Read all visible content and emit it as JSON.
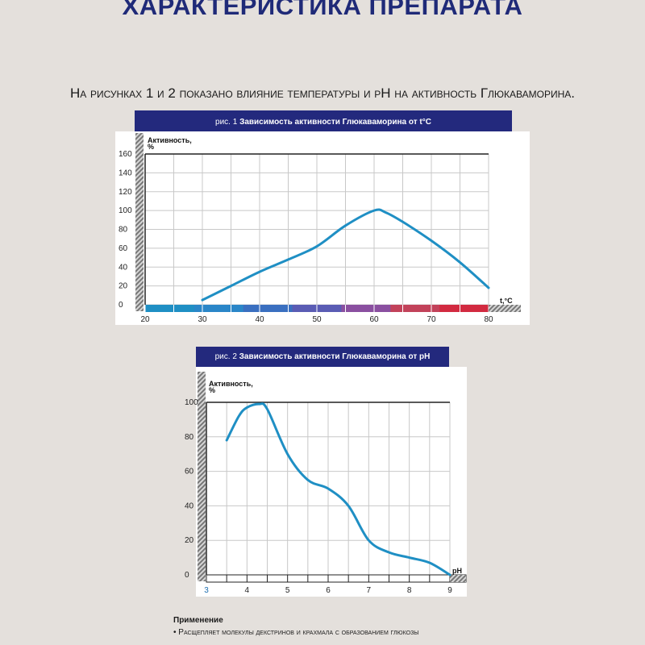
{
  "page": {
    "title": "ХАРАКТЕРИСТИКА ПРЕПАРАТА",
    "intro": "На рисунках 1 и 2 показано влияние температуры и pH на активность Глюкаваморина."
  },
  "chart_data": [
    {
      "type": "line",
      "caption_prefix": "рис. 1",
      "title": "Зависимость активности Глюкаваморина от t°C",
      "ylabel": "Активность, %",
      "xlabel": "t,°C",
      "ylim": [
        0,
        160
      ],
      "xlim": [
        20,
        80
      ],
      "yticks": [
        0,
        20,
        40,
        60,
        80,
        100,
        120,
        140,
        160
      ],
      "xticks": [
        20,
        30,
        40,
        50,
        60,
        70,
        80
      ],
      "grid": true,
      "line_color": "#1f8fc4",
      "x": [
        30,
        35,
        40,
        45,
        50,
        55,
        60,
        62,
        65,
        70,
        75,
        80
      ],
      "y": [
        5,
        20,
        35,
        48,
        62,
        84,
        100,
        98,
        88,
        68,
        45,
        18
      ],
      "color_bar": [
        "#1f8fc4",
        "#2a86c8",
        "#3a6fc0",
        "#5a5cb4",
        "#8a4fa0",
        "#c2425a",
        "#d22a40"
      ]
    },
    {
      "type": "line",
      "caption_prefix": "рис. 2",
      "title": "Зависимость активности Глюкаваморина от pH",
      "ylabel": "Активность, %",
      "xlabel": "pH",
      "ylim": [
        0,
        100
      ],
      "xlim": [
        3,
        9
      ],
      "yticks": [
        0,
        20,
        40,
        60,
        80,
        100
      ],
      "xticks": [
        3,
        4,
        5,
        6,
        7,
        8,
        9
      ],
      "grid": true,
      "line_color": "#1f8fc4",
      "x": [
        3.5,
        3.8,
        4.0,
        4.3,
        4.5,
        5.0,
        5.5,
        6.0,
        6.5,
        7.0,
        7.5,
        8.0,
        8.5,
        9.0
      ],
      "y": [
        78,
        92,
        97,
        99,
        96,
        70,
        55,
        50,
        40,
        20,
        13,
        10,
        7,
        0
      ]
    }
  ],
  "footer": {
    "heading": "Применение",
    "item": "• Расщепляет молекулы декстринов и крахмала с образованием глюкозы"
  }
}
